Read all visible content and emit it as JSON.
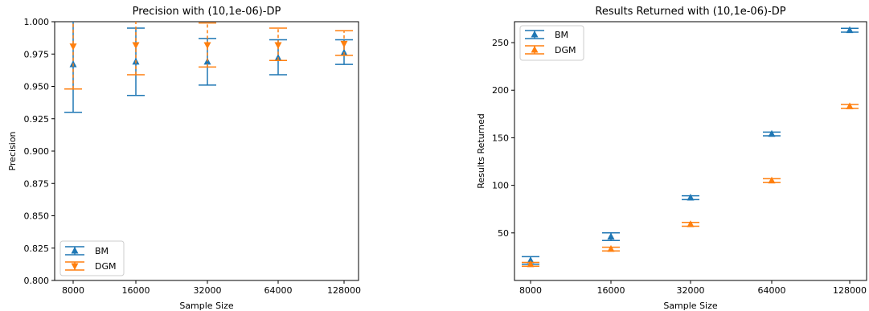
{
  "chart_data": [
    {
      "type": "scatter",
      "title": "Precision with (10,1e-06)-DP",
      "xlabel": "Sample Size",
      "ylabel": "Precision",
      "categories": [
        "8000",
        "16000",
        "32000",
        "64000",
        "128000"
      ],
      "ylim": [
        0.8,
        1.0
      ],
      "yticks": [
        "0.800",
        "0.825",
        "0.850",
        "0.875",
        "0.900",
        "0.925",
        "0.950",
        "0.975",
        "1.000"
      ],
      "grid": false,
      "legend": "lower-left",
      "series": [
        {
          "name": "BM",
          "color": "#1f77b4",
          "marker": "triangle-up",
          "values": [
            0.967,
            0.969,
            0.969,
            0.972,
            0.976
          ],
          "lower": [
            0.93,
            0.943,
            0.951,
            0.959,
            0.967
          ],
          "upper": [
            1.004,
            0.995,
            0.987,
            0.986,
            0.986
          ]
        },
        {
          "name": "DGM",
          "color": "#ff7f0e",
          "marker": "triangle-down",
          "values": [
            0.981,
            0.982,
            0.982,
            0.982,
            0.983
          ],
          "lower": [
            0.948,
            0.959,
            0.965,
            0.97,
            0.974
          ],
          "upper": [
            1.014,
            1.005,
            0.999,
            0.995,
            0.993
          ]
        }
      ]
    },
    {
      "type": "scatter",
      "title": "Results Returned with (10,1e-06)-DP",
      "xlabel": "Sample Size",
      "ylabel": "Results Returned",
      "categories": [
        "8000",
        "16000",
        "32000",
        "64000",
        "128000"
      ],
      "ylim": [
        0,
        272
      ],
      "yticks": [
        "50",
        "100",
        "150",
        "200",
        "250"
      ],
      "grid": false,
      "legend": "upper-left",
      "series": [
        {
          "name": "BM",
          "color": "#1f77b4",
          "marker": "triangle-up",
          "values": [
            21,
            46,
            87,
            154,
            263
          ],
          "lower": [
            17,
            42,
            85,
            152,
            261
          ],
          "upper": [
            25,
            50,
            89,
            156,
            265
          ]
        },
        {
          "name": "DGM",
          "color": "#ff7f0e",
          "marker": "triangle-up",
          "values": [
            17,
            33,
            59,
            105,
            183
          ],
          "lower": [
            15,
            31,
            57,
            103,
            181
          ],
          "upper": [
            19,
            35,
            61,
            107,
            185
          ]
        }
      ]
    }
  ]
}
